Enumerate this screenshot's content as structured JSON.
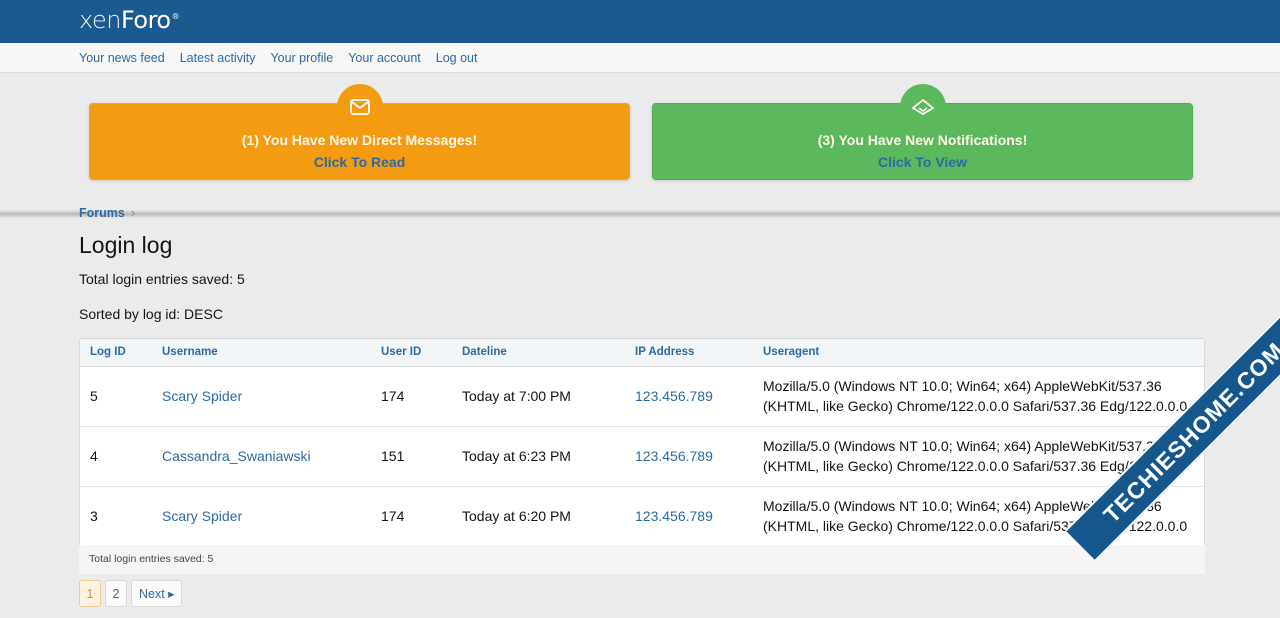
{
  "header": {
    "logo_main": "xen",
    "logo_second": "Foro",
    "logo_reg": "®"
  },
  "nav": {
    "items": [
      "Your news feed",
      "Latest activity",
      "Your profile",
      "Your account",
      "Log out"
    ]
  },
  "banners": {
    "messages": {
      "line1": "(1)  You Have New Direct Messages!",
      "line2": "Click To Read",
      "icon": "envelope-icon",
      "color": "#f39c12"
    },
    "notifications": {
      "line1": "(3)  You Have New Notifications!",
      "line2": "Click To View",
      "icon": "notification-icon",
      "color": "#5cb85c"
    }
  },
  "breadcrumb": {
    "item": "Forums",
    "sep": "›"
  },
  "page": {
    "title": "Login log",
    "total": "Total login entries saved: 5",
    "sorted": "Sorted by log id: DESC"
  },
  "table": {
    "headers": {
      "log_id": "Log ID",
      "username": "Username",
      "user_id": "User ID",
      "dateline": "Dateline",
      "ip": "IP Address",
      "useragent": "Useragent"
    },
    "rows": [
      {
        "log_id": "5",
        "username": "Scary Spider",
        "user_id": "174",
        "dateline": "Today at 7:00 PM",
        "ip": "123.456.789",
        "ua1": "Mozilla/5.0 (Windows NT 10.0; Win64; x64) AppleWebKit/537.36",
        "ua2": "(KHTML, like Gecko) Chrome/122.0.0.0 Safari/537.36 Edg/122.0.0.0"
      },
      {
        "log_id": "4",
        "username": "Cassandra_Swaniawski",
        "user_id": "151",
        "dateline": "Today at 6:23 PM",
        "ip": "123.456.789",
        "ua1": "Mozilla/5.0 (Windows NT 10.0; Win64; x64) AppleWebKit/537.36",
        "ua2": "(KHTML, like Gecko) Chrome/122.0.0.0 Safari/537.36 Edg/122.0.0.0"
      },
      {
        "log_id": "3",
        "username": "Scary Spider",
        "user_id": "174",
        "dateline": "Today at 6:20 PM",
        "ip": "123.456.789",
        "ua1": "Mozilla/5.0 (Windows NT 10.0; Win64; x64) AppleWebKit/537.36",
        "ua2": "(KHTML, like Gecko) Chrome/122.0.0.0 Safari/537.36 Edg/122.0.0.0"
      }
    ],
    "footer": "Total login entries saved: 5"
  },
  "pager": {
    "page1": "1",
    "page2": "2",
    "next": "Next ▸"
  },
  "watermark": {
    "text": "TECHIESHOME",
    "suffix": ".COM"
  }
}
